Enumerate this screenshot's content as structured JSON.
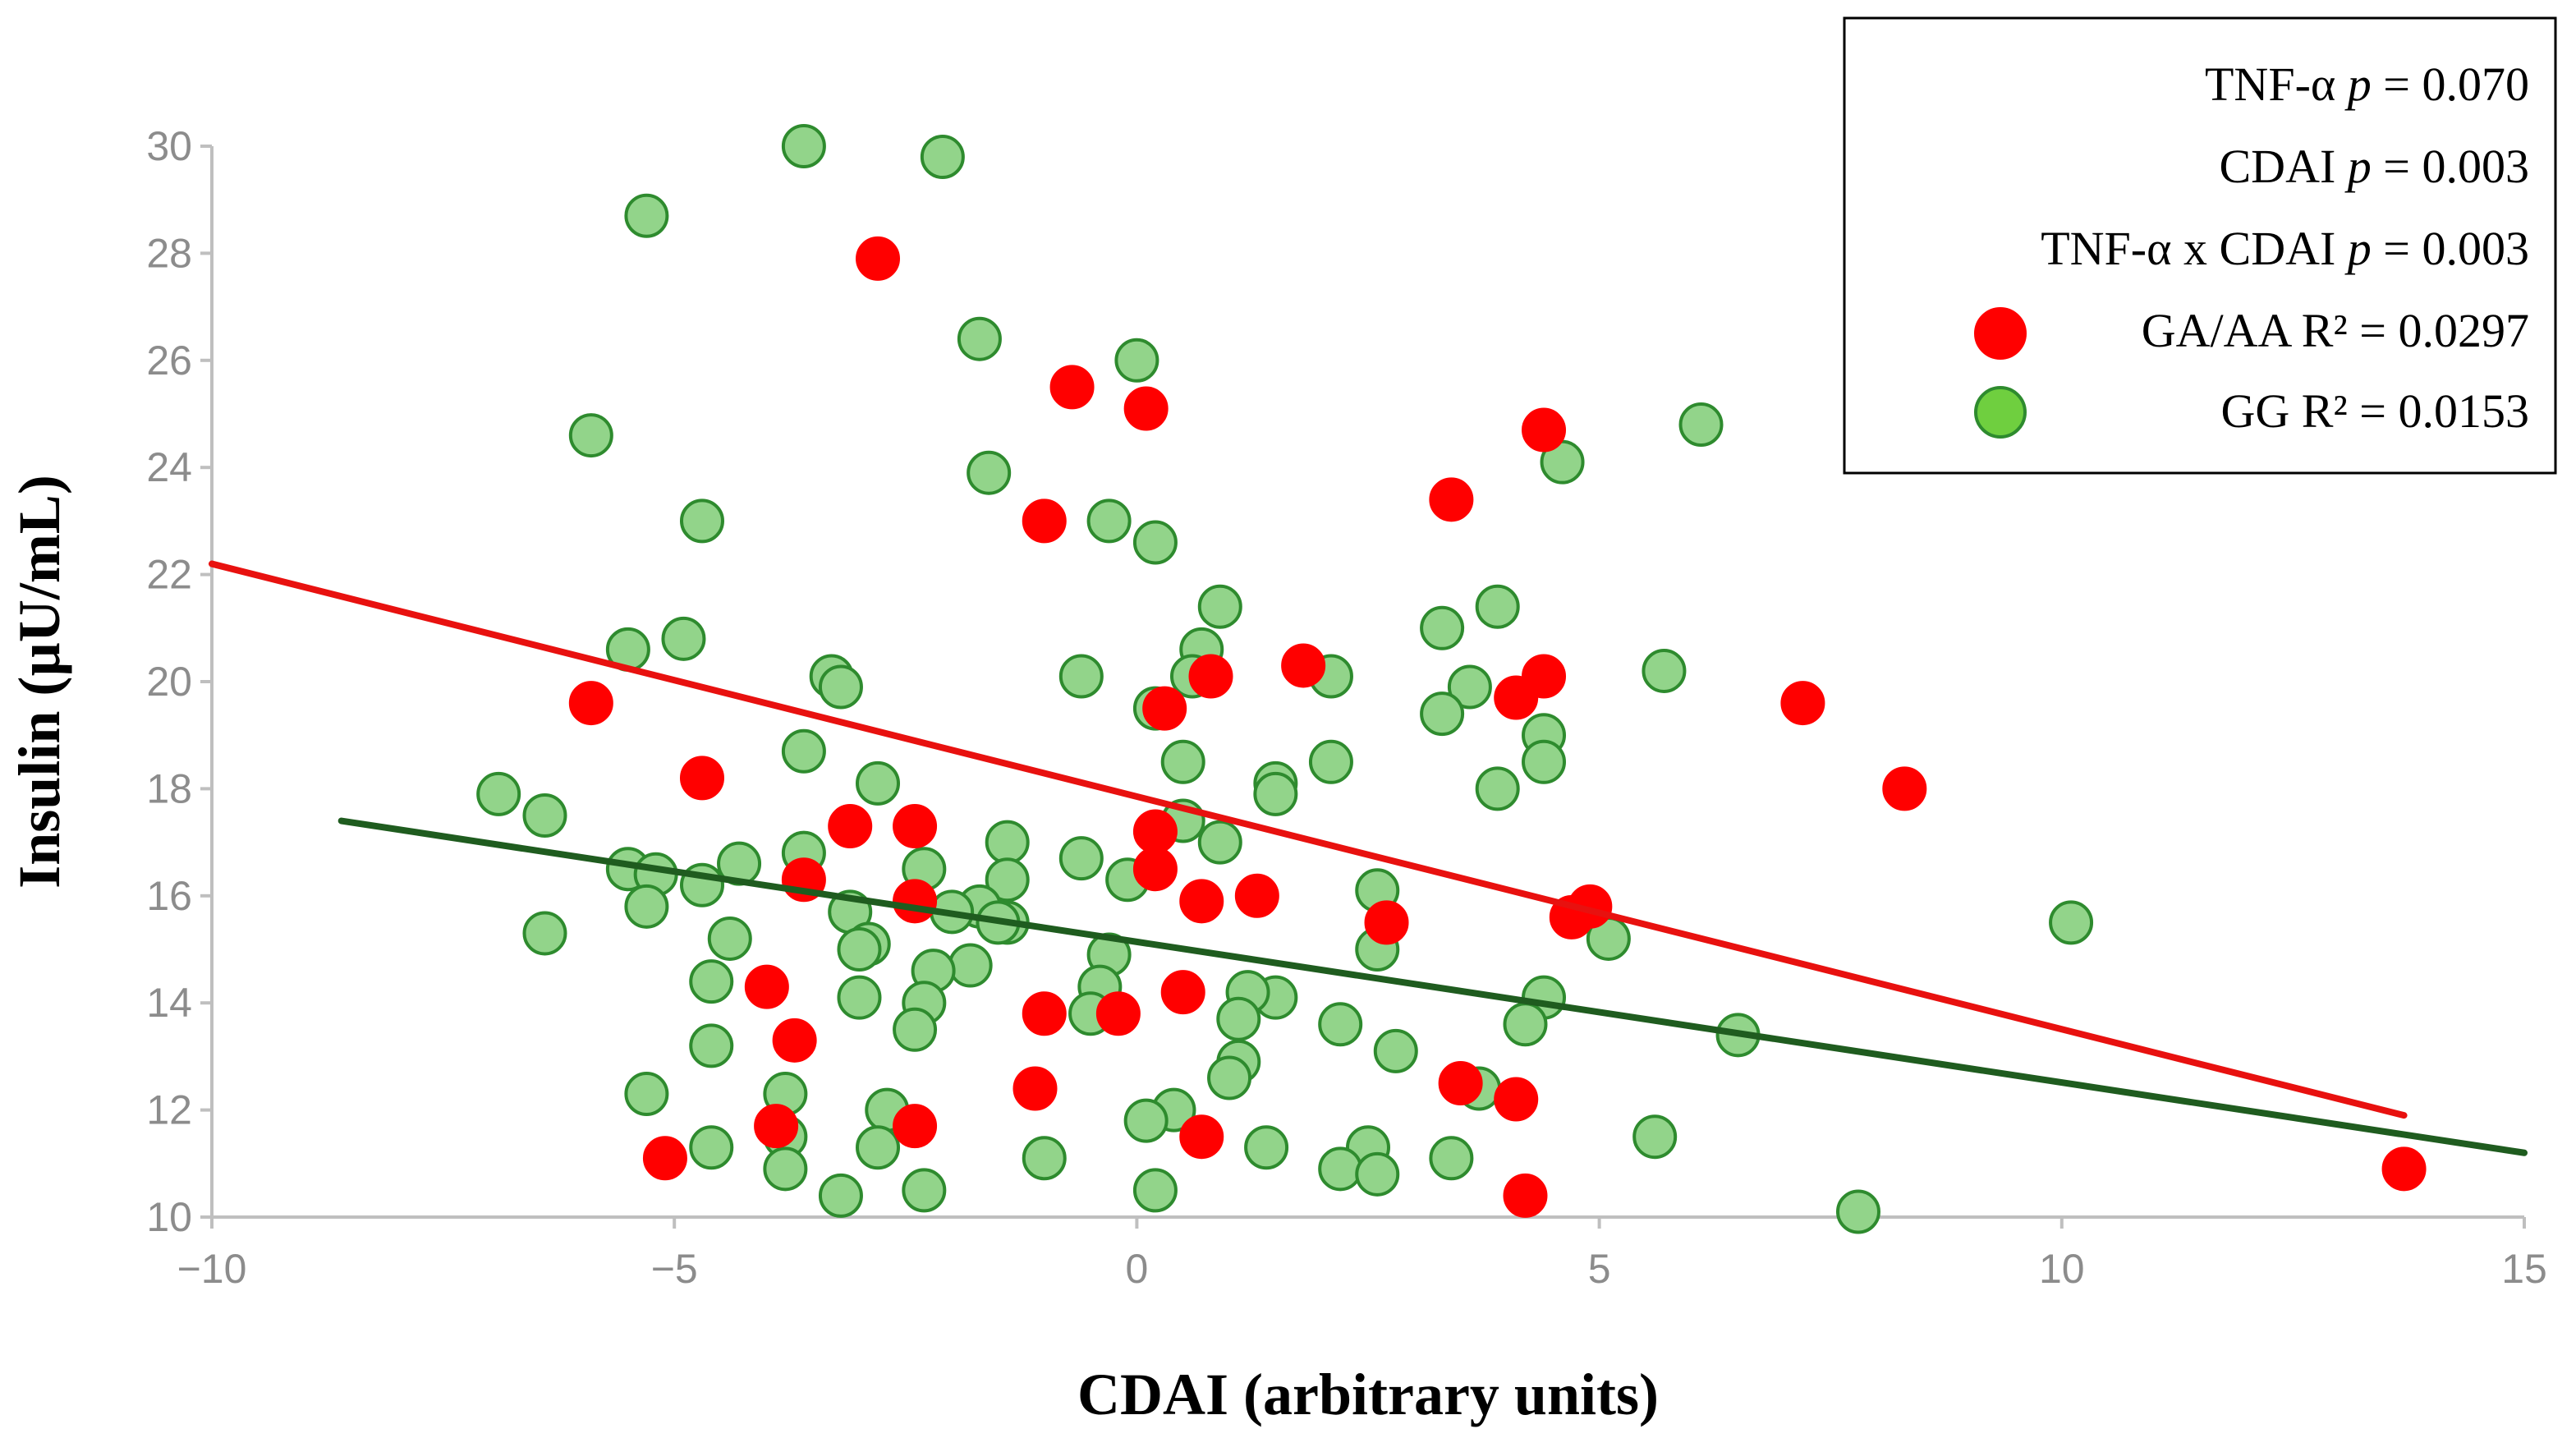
{
  "chart_data": {
    "type": "scatter",
    "title": "",
    "xlabel": "CDAI (arbitrary units)",
    "ylabel": "Insulin (µU/mL)",
    "xlim": [
      -10,
      15
    ],
    "ylim": [
      10,
      30
    ],
    "x_ticks": [
      -10,
      -5,
      0,
      5,
      10,
      15
    ],
    "y_ticks": [
      10,
      12,
      14,
      16,
      18,
      20,
      22,
      24,
      26,
      28,
      30
    ],
    "x_tick_labels": [
      "−10",
      "−5",
      "0",
      "5",
      "10",
      "15"
    ],
    "y_tick_labels": [
      "10",
      "12",
      "14",
      "16",
      "18",
      "20",
      "22",
      "24",
      "26",
      "28",
      "30"
    ],
    "grid": false,
    "legend_position": "top-right",
    "stats": [
      {
        "name": "TNF-α",
        "p_text": "p",
        "value_text": " = 0.070"
      },
      {
        "name": "CDAI",
        "p_text": "p",
        "value_text": " = 0.003"
      },
      {
        "name": "TNF-α x CDAI",
        "p_text": "p",
        "value_text": " = 0.003"
      }
    ],
    "series": [
      {
        "name": "GG",
        "legend_label": "GG R² = 0.0153",
        "r_squared": 0.0153,
        "color": "#92d48a",
        "edge_color": "#2e8b2e",
        "trend_color": "#1f5c1f",
        "trendline": {
          "x": [
            -8.6,
            15
          ],
          "y": [
            17.4,
            11.2
          ]
        },
        "points": [
          [
            -3.6,
            30.0
          ],
          [
            -2.1,
            29.8
          ],
          [
            -5.3,
            28.7
          ],
          [
            -1.7,
            26.4
          ],
          [
            0.0,
            26.0
          ],
          [
            -5.9,
            24.6
          ],
          [
            -1.6,
            23.9
          ],
          [
            6.1,
            24.8
          ],
          [
            4.6,
            24.1
          ],
          [
            -4.7,
            23.0
          ],
          [
            -0.3,
            23.0
          ],
          [
            0.2,
            22.6
          ],
          [
            0.9,
            21.4
          ],
          [
            3.9,
            21.4
          ],
          [
            3.3,
            21.0
          ],
          [
            -4.9,
            20.8
          ],
          [
            -5.5,
            20.6
          ],
          [
            0.7,
            20.6
          ],
          [
            -0.6,
            20.1
          ],
          [
            0.6,
            20.1
          ],
          [
            2.1,
            20.1
          ],
          [
            5.7,
            20.2
          ],
          [
            -3.3,
            20.1
          ],
          [
            -3.2,
            19.9
          ],
          [
            3.6,
            19.9
          ],
          [
            0.2,
            19.5
          ],
          [
            3.3,
            19.4
          ],
          [
            4.4,
            19.0
          ],
          [
            -3.6,
            18.7
          ],
          [
            0.5,
            18.5
          ],
          [
            2.1,
            18.5
          ],
          [
            4.4,
            18.5
          ],
          [
            -2.8,
            18.1
          ],
          [
            1.5,
            18.1
          ],
          [
            1.5,
            17.9
          ],
          [
            3.9,
            18.0
          ],
          [
            -6.9,
            17.9
          ],
          [
            -6.4,
            17.5
          ],
          [
            0.5,
            17.4
          ],
          [
            0.9,
            17.0
          ],
          [
            -1.4,
            17.0
          ],
          [
            -0.6,
            16.7
          ],
          [
            -3.6,
            16.8
          ],
          [
            -4.3,
            16.6
          ],
          [
            -5.5,
            16.5
          ],
          [
            -5.2,
            16.4
          ],
          [
            -2.3,
            16.5
          ],
          [
            -1.4,
            16.3
          ],
          [
            -0.1,
            16.3
          ],
          [
            -4.7,
            16.2
          ],
          [
            2.6,
            16.1
          ],
          [
            -5.3,
            15.8
          ],
          [
            -3.1,
            15.7
          ],
          [
            -1.7,
            15.8
          ],
          [
            -2.0,
            15.7
          ],
          [
            -1.4,
            15.5
          ],
          [
            -1.5,
            15.5
          ],
          [
            -6.4,
            15.3
          ],
          [
            -4.4,
            15.2
          ],
          [
            -2.9,
            15.1
          ],
          [
            5.1,
            15.2
          ],
          [
            2.6,
            15.0
          ],
          [
            -3.0,
            15.0
          ],
          [
            -0.3,
            14.9
          ],
          [
            -1.8,
            14.7
          ],
          [
            -2.2,
            14.6
          ],
          [
            -4.6,
            14.4
          ],
          [
            -0.4,
            14.3
          ],
          [
            -2.3,
            14.0
          ],
          [
            -3.0,
            14.1
          ],
          [
            4.4,
            14.1
          ],
          [
            1.5,
            14.1
          ],
          [
            1.2,
            14.2
          ],
          [
            -0.5,
            13.8
          ],
          [
            1.1,
            13.7
          ],
          [
            2.2,
            13.6
          ],
          [
            4.2,
            13.6
          ],
          [
            -2.4,
            13.5
          ],
          [
            6.5,
            13.4
          ],
          [
            -4.6,
            13.2
          ],
          [
            2.8,
            13.1
          ],
          [
            1.1,
            12.9
          ],
          [
            1.0,
            12.6
          ],
          [
            3.7,
            12.4
          ],
          [
            -5.3,
            12.3
          ],
          [
            -3.8,
            12.3
          ],
          [
            -2.7,
            12.0
          ],
          [
            0.4,
            12.0
          ],
          [
            0.1,
            11.8
          ],
          [
            -3.8,
            11.5
          ],
          [
            5.6,
            11.5
          ],
          [
            -4.6,
            11.3
          ],
          [
            -2.8,
            11.3
          ],
          [
            1.4,
            11.3
          ],
          [
            2.5,
            11.3
          ],
          [
            3.4,
            11.1
          ],
          [
            -1.0,
            11.1
          ],
          [
            -3.8,
            10.9
          ],
          [
            2.2,
            10.9
          ],
          [
            2.6,
            10.8
          ],
          [
            -2.3,
            10.5
          ],
          [
            0.2,
            10.5
          ],
          [
            -3.2,
            10.4
          ],
          [
            10.1,
            15.5
          ],
          [
            7.8,
            10.1
          ]
        ]
      },
      {
        "name": "GA/AA",
        "legend_label": "GA/AA R² = 0.0297",
        "r_squared": 0.0297,
        "color": "#ff0000",
        "edge_color": "#ff0000",
        "trend_color": "#e8110f",
        "trendline": {
          "x": [
            -10,
            13.7
          ],
          "y": [
            22.2,
            11.9
          ]
        },
        "points": [
          [
            -2.8,
            27.9
          ],
          [
            -0.7,
            25.5
          ],
          [
            0.1,
            25.1
          ],
          [
            4.4,
            24.7
          ],
          [
            3.4,
            23.4
          ],
          [
            -1.0,
            23.0
          ],
          [
            -5.9,
            19.6
          ],
          [
            1.8,
            20.3
          ],
          [
            0.8,
            20.1
          ],
          [
            4.4,
            20.1
          ],
          [
            4.1,
            19.7
          ],
          [
            7.2,
            19.6
          ],
          [
            0.3,
            19.5
          ],
          [
            -4.7,
            18.2
          ],
          [
            8.3,
            18.0
          ],
          [
            -3.1,
            17.3
          ],
          [
            -2.4,
            17.3
          ],
          [
            0.2,
            17.2
          ],
          [
            0.2,
            16.5
          ],
          [
            -3.6,
            16.3
          ],
          [
            1.3,
            16.0
          ],
          [
            -2.4,
            15.9
          ],
          [
            0.7,
            15.9
          ],
          [
            4.9,
            15.8
          ],
          [
            4.7,
            15.6
          ],
          [
            2.7,
            15.5
          ],
          [
            -4.0,
            14.3
          ],
          [
            0.5,
            14.2
          ],
          [
            -1.0,
            13.8
          ],
          [
            -0.2,
            13.8
          ],
          [
            -3.7,
            13.3
          ],
          [
            3.5,
            12.5
          ],
          [
            -1.1,
            12.4
          ],
          [
            4.1,
            12.2
          ],
          [
            -3.9,
            11.7
          ],
          [
            -2.4,
            11.7
          ],
          [
            0.7,
            11.5
          ],
          [
            -5.1,
            11.1
          ],
          [
            4.2,
            10.4
          ],
          [
            13.7,
            10.9
          ]
        ]
      }
    ]
  }
}
